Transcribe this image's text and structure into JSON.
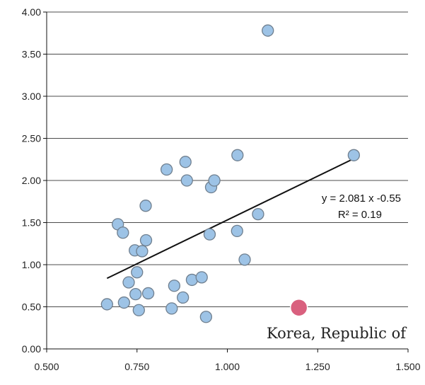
{
  "chart_data": {
    "type": "scatter",
    "title": "",
    "xlabel": "",
    "ylabel": "",
    "xlim": [
      0.5,
      1.5
    ],
    "ylim": [
      0.0,
      4.0
    ],
    "x_ticks": [
      "0.500",
      "0.750",
      "1.000",
      "1.250",
      "1.500"
    ],
    "y_ticks": [
      "0.00",
      "0.50",
      "1.00",
      "1.50",
      "2.00",
      "2.50",
      "3.00",
      "3.50",
      "4.00"
    ],
    "grid": "horizontal",
    "colors": {
      "points": "#9dc3e6",
      "point_edge": "#6f7f8f",
      "highlight": "#d9607e",
      "trend": "#111111"
    },
    "series": [
      {
        "points": [
          [
            0.667,
            0.53
          ],
          [
            0.697,
            1.48
          ],
          [
            0.711,
            1.38
          ],
          [
            0.714,
            0.55
          ],
          [
            0.727,
            0.79
          ],
          [
            0.744,
            1.17
          ],
          [
            0.746,
            0.65
          ],
          [
            0.75,
            0.91
          ],
          [
            0.755,
            0.46
          ],
          [
            0.764,
            1.16
          ],
          [
            0.774,
            1.7
          ],
          [
            0.775,
            1.29
          ],
          [
            0.781,
            0.66
          ],
          [
            0.832,
            2.13
          ],
          [
            0.846,
            0.48
          ],
          [
            0.853,
            0.75
          ],
          [
            0.877,
            0.61
          ],
          [
            0.884,
            2.22
          ],
          [
            0.888,
            2.0
          ],
          [
            0.902,
            0.82
          ],
          [
            0.929,
            0.85
          ],
          [
            0.941,
            0.38
          ],
          [
            0.951,
            1.36
          ],
          [
            0.955,
            1.92
          ],
          [
            0.964,
            2.0
          ],
          [
            1.027,
            1.4
          ],
          [
            1.028,
            2.3
          ],
          [
            1.048,
            1.06
          ],
          [
            1.085,
            1.6
          ],
          [
            1.112,
            3.78
          ],
          [
            1.35,
            2.3
          ]
        ]
      }
    ],
    "highlight": {
      "label": "Korea, Republic of",
      "x": 1.198,
      "y": 0.49
    },
    "trendline": {
      "equation": "y = 2.081 x -0.55",
      "r2_label": "R² = 0.19",
      "slope": 2.081,
      "intercept": -0.55,
      "x_range": [
        0.667,
        1.35
      ]
    }
  }
}
